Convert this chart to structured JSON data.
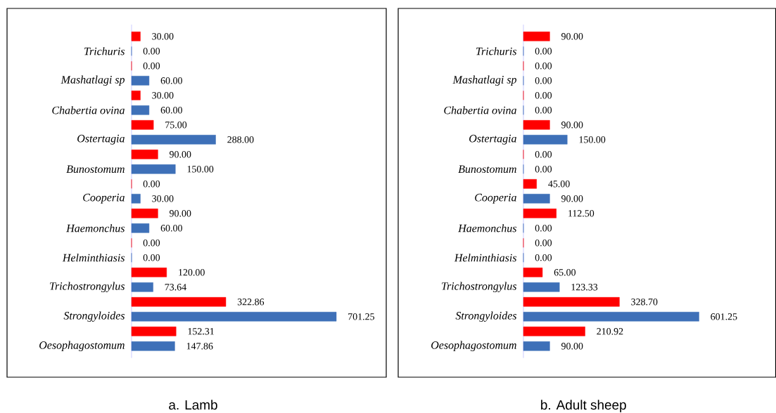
{
  "chart_data": [
    {
      "type": "bar",
      "orientation": "horizontal",
      "title": "a.  Lamb",
      "categories": [
        "Trichuris",
        "Mashatlagi sp",
        "Chabertia ovina",
        "Ostertagia",
        "Bunostomum",
        "Cooperia",
        "Haemonchus",
        "Helminthiasis",
        "Trichostrongylus",
        "Strongyloides",
        "Oesophagostomum"
      ],
      "series": [
        {
          "color": "#3e70b8",
          "values": [
            0,
            60,
            60,
            288,
            150,
            30,
            60,
            0,
            73.64,
            701.25,
            147.86
          ],
          "value_labels": [
            "0.00",
            "60.00",
            "60.00",
            "288.00",
            "150.00",
            "30.00",
            "60.00",
            "0.00",
            "73.64",
            "701.25",
            "147.86"
          ]
        },
        {
          "color": "#ff0000",
          "values": [
            30,
            0,
            30,
            75,
            90,
            0,
            90,
            0,
            120,
            322.86,
            152.31
          ],
          "value_labels": [
            "30.00",
            "0.00",
            "30.00",
            "75.00",
            "90.00",
            "0.00",
            "90.00",
            "0.00",
            "120.00",
            "322.86",
            "152.31"
          ]
        }
      ]
    },
    {
      "type": "bar",
      "orientation": "horizontal",
      "title": "b.  Adult sheep",
      "categories": [
        "Trichuris",
        "Mashatlagi sp",
        "Chabertia ovina",
        "Ostertagia",
        "Bunostomum",
        "Cooperia",
        "Haemonchus",
        "Helminthiasis",
        "Trichostrongylus",
        "Strongyloides",
        "Oesophagostomum"
      ],
      "series": [
        {
          "color": "#3e70b8",
          "values": [
            0,
            0,
            0,
            150,
            0,
            90,
            0,
            0,
            123.33,
            601.25,
            90
          ],
          "value_labels": [
            "0.00",
            "0.00",
            "0.00",
            "150.00",
            "0.00",
            "90.00",
            "0.00",
            "0.00",
            "123.33",
            "601.25",
            "90.00"
          ]
        },
        {
          "color": "#ff0000",
          "values": [
            90,
            0,
            0,
            90,
            0,
            45,
            112.5,
            0,
            65,
            328.7,
            210.92
          ],
          "value_labels": [
            "90.00",
            "0.00",
            "0.00",
            "90.00",
            "0.00",
            "45.00",
            "112.50",
            "0.00",
            "65.00",
            "328.70",
            "210.92"
          ]
        }
      ]
    }
  ]
}
